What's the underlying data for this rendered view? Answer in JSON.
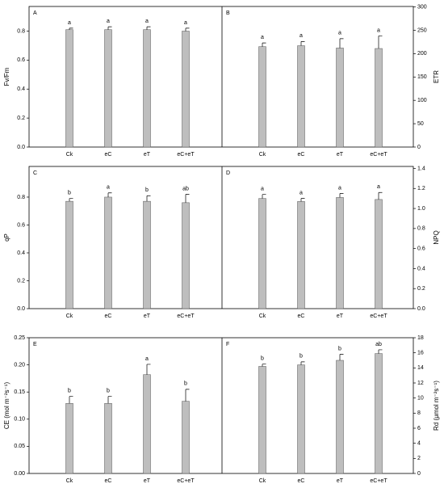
{
  "chart_data": [
    {
      "type": "bar",
      "panel": "A",
      "ylabel": "Fv/Fm",
      "color": "#bebebe",
      "side": "left",
      "categories": [
        "Ck",
        "eC",
        "eT",
        "eC+eT"
      ],
      "values": [
        0.81,
        0.81,
        0.81,
        0.8
      ],
      "errors": [
        0.01,
        0.02,
        0.02,
        0.02
      ],
      "annotations": [
        "a",
        "a",
        "a",
        "a"
      ],
      "ylim": [
        0,
        0.97
      ],
      "yticks": [
        {
          "value": 0,
          "label": "0.0"
        },
        {
          "value": 0.2,
          "label": "0.2"
        },
        {
          "value": 0.4,
          "label": "0.4"
        },
        {
          "value": 0.6,
          "label": "0.6"
        },
        {
          "value": 0.8,
          "label": "0.8"
        }
      ]
    },
    {
      "type": "bar",
      "panel": "B",
      "ylabel": "ETR",
      "color": "#bebebe",
      "side": "right",
      "categories": [
        "Ck",
        "eC",
        "eT",
        "eC+eT"
      ],
      "values": [
        215,
        217,
        212,
        211
      ],
      "errors": [
        8,
        9,
        20,
        27
      ],
      "annotations": [
        "a",
        "a",
        "a",
        "a"
      ],
      "ylim": [
        0,
        301
      ],
      "yticks": [
        0,
        50,
        100,
        150,
        200,
        250,
        300
      ]
    },
    {
      "type": "bar",
      "panel": "C",
      "ylabel": "qP",
      "color": "#bebebe",
      "side": "left",
      "categories": [
        "Ck",
        "eC",
        "eT",
        "eC+eT"
      ],
      "values": [
        0.77,
        0.8,
        0.77,
        0.76
      ],
      "errors": [
        0.02,
        0.03,
        0.04,
        0.06
      ],
      "annotations": [
        "b",
        "a",
        "b",
        "ab"
      ],
      "ylim": [
        0,
        1.02
      ],
      "yticks": [
        {
          "value": 0,
          "label": "0.0"
        },
        {
          "value": 0.2,
          "label": "0.2"
        },
        {
          "value": 0.4,
          "label": "0.4"
        },
        {
          "value": 0.6,
          "label": "0.6"
        },
        {
          "value": 0.8,
          "label": "0.8"
        }
      ]
    },
    {
      "type": "bar",
      "panel": "D",
      "ylabel": "NPQ",
      "color": "#bebebe",
      "side": "right",
      "categories": [
        "Ck",
        "eC",
        "eT",
        "eC+eT"
      ],
      "values": [
        1.1,
        1.07,
        1.11,
        1.09
      ],
      "errors": [
        0.04,
        0.03,
        0.04,
        0.07
      ],
      "annotations": [
        "a",
        "a",
        "a",
        "a"
      ],
      "ylim": [
        0,
        1.42
      ],
      "yticks": [
        {
          "value": 0,
          "label": "0.0"
        },
        {
          "value": 0.2,
          "label": "0.2"
        },
        {
          "value": 0.4,
          "label": "0.4"
        },
        {
          "value": 0.6,
          "label": "0.6"
        },
        {
          "value": 0.8,
          "label": "0.8"
        },
        {
          "value": 1,
          "label": "1.0"
        },
        {
          "value": 1.2,
          "label": "1.2"
        },
        {
          "value": 1.4,
          "label": "1.4"
        }
      ]
    },
    {
      "type": "bar",
      "panel": "E",
      "ylabel": "CE (mol m⁻²s⁻¹)",
      "color": "#bebebe",
      "side": "left",
      "categories": [
        "Ck",
        "eC",
        "eT",
        "eC+eT"
      ],
      "values": [
        0.129,
        0.129,
        0.182,
        0.133
      ],
      "errors": [
        0.013,
        0.013,
        0.019,
        0.022
      ],
      "annotations": [
        "b",
        "b",
        "a",
        "b"
      ],
      "ylim": [
        0,
        0.25
      ],
      "yticks": [
        {
          "value": 0,
          "label": "0.00"
        },
        {
          "value": 0.05,
          "label": "0.05"
        },
        {
          "value": 0.1,
          "label": "0.10"
        },
        {
          "value": 0.15,
          "label": "0.15"
        },
        {
          "value": 0.2,
          "label": "0.20"
        },
        {
          "value": 0.25,
          "label": "0.25"
        }
      ]
    },
    {
      "type": "bar",
      "panel": "F",
      "ylabel": "Rd (μmol m⁻²s⁻¹)",
      "color": "#bebebe",
      "side": "right",
      "categories": [
        "Ck",
        "eC",
        "eT",
        "eC+eT"
      ],
      "values": [
        14.2,
        14.4,
        15,
        15.9
      ],
      "errors": [
        0.3,
        0.4,
        0.8,
        0.5
      ],
      "annotations": [
        "b",
        "b",
        "b",
        "ab"
      ],
      "ylim": [
        0,
        18
      ],
      "yticks": [
        0,
        2,
        4,
        6,
        8,
        10,
        12,
        14,
        16,
        18
      ]
    }
  ]
}
